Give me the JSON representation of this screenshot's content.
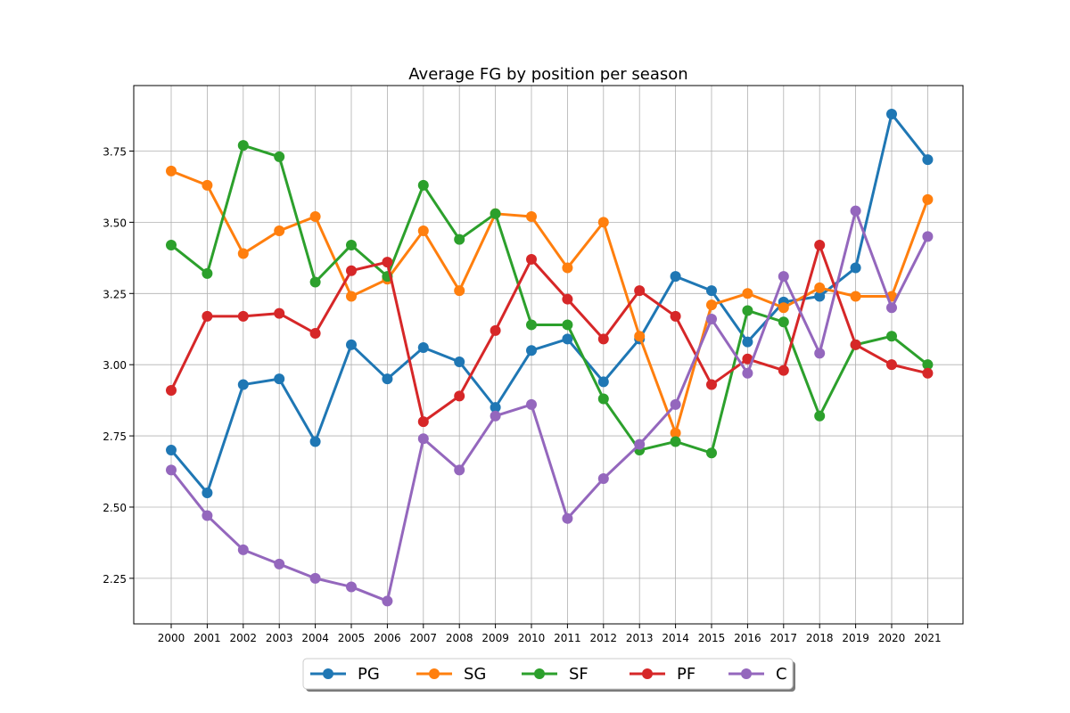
{
  "chart_data": {
    "type": "line",
    "title": "Average FG by position per season",
    "xlabel": "",
    "ylabel": "",
    "x": [
      "2000",
      "2001",
      "2002",
      "2003",
      "2004",
      "2005",
      "2006",
      "2007",
      "2008",
      "2009",
      "2010",
      "2011",
      "2012",
      "2013",
      "2014",
      "2015",
      "2016",
      "2017",
      "2018",
      "2019",
      "2020",
      "2021"
    ],
    "yticks": [
      2.25,
      2.5,
      2.75,
      3.0,
      3.25,
      3.5,
      3.75
    ],
    "ytick_labels": [
      "2.25",
      "2.50",
      "2.75",
      "3.00",
      "3.25",
      "3.50",
      "3.75"
    ],
    "ylim": [
      2.09,
      3.98
    ],
    "grid": true,
    "legend_placement": "bottom-center",
    "series": [
      {
        "name": "PG",
        "color": "#1f77b4",
        "values": [
          2.7,
          2.55,
          2.93,
          2.95,
          2.73,
          3.07,
          2.95,
          3.06,
          3.01,
          2.85,
          3.05,
          3.09,
          2.94,
          3.09,
          3.31,
          3.26,
          3.08,
          3.22,
          3.24,
          3.34,
          3.88,
          3.72
        ]
      },
      {
        "name": "SG",
        "color": "#ff7f0e",
        "values": [
          3.68,
          3.63,
          3.39,
          3.47,
          3.52,
          3.24,
          3.3,
          3.47,
          3.26,
          3.53,
          3.52,
          3.34,
          3.5,
          3.1,
          2.76,
          3.21,
          3.25,
          3.2,
          3.27,
          3.24,
          3.24,
          3.58
        ]
      },
      {
        "name": "SF",
        "color": "#2ca02c",
        "values": [
          3.42,
          3.32,
          3.77,
          3.73,
          3.29,
          3.42,
          3.31,
          3.63,
          3.44,
          3.53,
          3.14,
          3.14,
          2.88,
          2.7,
          2.73,
          2.69,
          3.19,
          3.15,
          2.82,
          3.07,
          3.1,
          3.0
        ]
      },
      {
        "name": "PF",
        "color": "#d62728",
        "values": [
          2.91,
          3.17,
          3.17,
          3.18,
          3.11,
          3.33,
          3.36,
          2.8,
          2.89,
          3.12,
          3.37,
          3.23,
          3.09,
          3.26,
          3.17,
          2.93,
          3.02,
          2.98,
          3.42,
          3.07,
          3.0,
          2.97
        ]
      },
      {
        "name": "C",
        "color": "#9467bd",
        "values": [
          2.63,
          2.47,
          2.35,
          2.3,
          2.25,
          2.22,
          2.17,
          2.74,
          2.63,
          2.82,
          2.86,
          2.46,
          2.6,
          2.72,
          2.86,
          3.16,
          2.97,
          3.31,
          3.04,
          3.54,
          3.2,
          3.45
        ]
      }
    ]
  }
}
